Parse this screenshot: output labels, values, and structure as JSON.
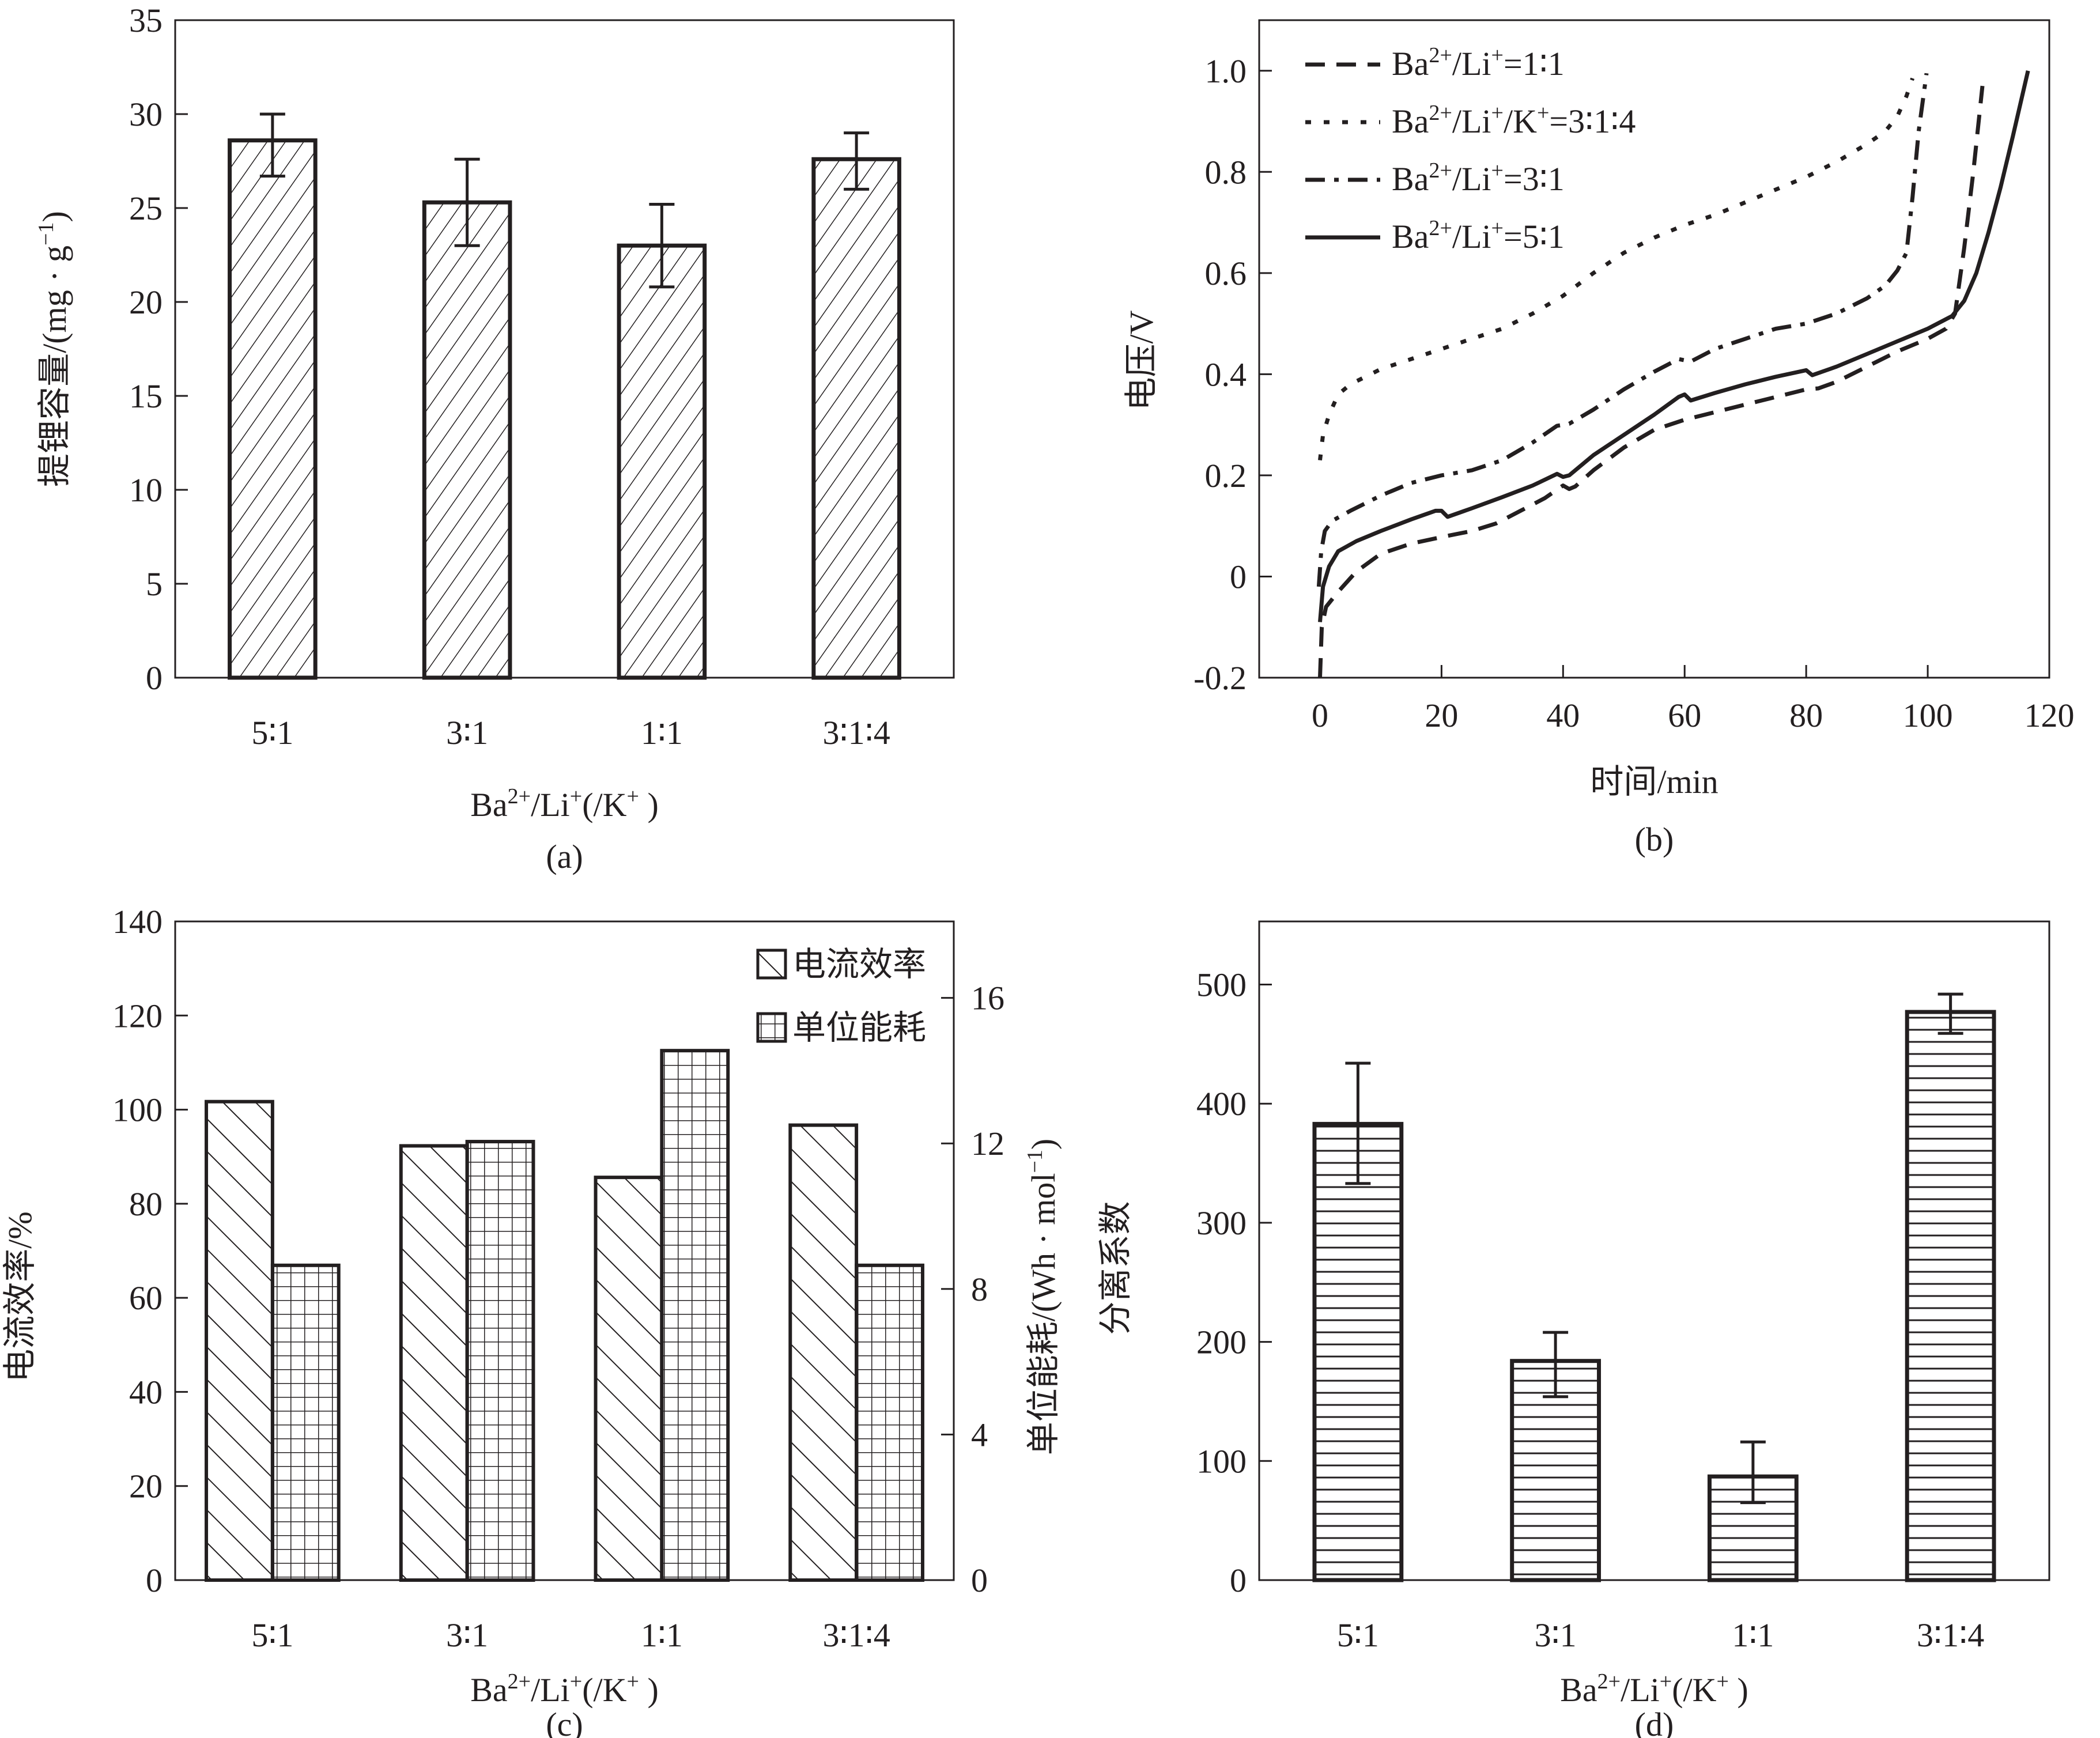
{
  "chart_data": [
    {
      "id": "a",
      "type": "bar",
      "panel_label": "(a)",
      "title": "",
      "xlabel": "Ba2+/Li+(/K+)",
      "ylabel": "提锂容量/(mg·g-1)",
      "categories": [
        "5∶1",
        "3∶1",
        "1∶1",
        "3∶1∶4"
      ],
      "values": [
        28.6,
        25.3,
        23.0,
        27.6
      ],
      "error_low": [
        26.7,
        23.0,
        20.8,
        26.0
      ],
      "error_high": [
        30.0,
        27.6,
        25.2,
        29.0
      ],
      "ylim": [
        0,
        35
      ],
      "yticks": [
        0,
        5,
        10,
        15,
        20,
        25,
        30,
        35
      ],
      "pattern": "diagonal-forward",
      "grid": false
    },
    {
      "id": "b",
      "type": "line",
      "panel_label": "(b)",
      "title": "",
      "xlabel": "时间/min",
      "ylabel": "电压/V",
      "xlim": [
        -10,
        120
      ],
      "ylim": [
        -0.2,
        1.1
      ],
      "xticks": [
        0,
        20,
        40,
        60,
        80,
        100,
        120
      ],
      "yticks": [
        -0.2,
        0,
        0.2,
        0.4,
        0.6,
        0.8,
        1.0
      ],
      "ytick_labels": [
        "-0.2",
        "0",
        "0.2",
        "0.4",
        "0.6",
        "0.8",
        "1.0"
      ],
      "legend_position": "top-left",
      "grid": false,
      "series": [
        {
          "name": "Ba2+/Li+=1∶1",
          "style": "dashed",
          "points": [
            [
              0,
              -0.2
            ],
            [
              0.3,
              -0.1
            ],
            [
              1,
              -0.06
            ],
            [
              3,
              -0.03
            ],
            [
              6,
              0.01
            ],
            [
              10,
              0.045
            ],
            [
              15,
              0.065
            ],
            [
              20,
              0.078
            ],
            [
              25,
              0.09
            ],
            [
              29,
              0.105
            ],
            [
              33,
              0.13
            ],
            [
              37,
              0.155
            ],
            [
              40,
              0.18
            ],
            [
              41,
              0.173
            ],
            [
              42,
              0.178
            ],
            [
              45,
              0.21
            ],
            [
              50,
              0.255
            ],
            [
              55,
              0.29
            ],
            [
              60,
              0.31
            ],
            [
              65,
              0.325
            ],
            [
              70,
              0.34
            ],
            [
              75,
              0.355
            ],
            [
              80,
              0.37
            ],
            [
              82,
              0.372
            ],
            [
              85,
              0.385
            ],
            [
              90,
              0.415
            ],
            [
              95,
              0.445
            ],
            [
              100,
              0.47
            ],
            [
              103,
              0.49
            ],
            [
              104.5,
              0.52
            ],
            [
              106,
              0.65
            ],
            [
              107.5,
              0.8
            ],
            [
              109,
              0.97
            ]
          ]
        },
        {
          "name": "Ba2+/Li+/K+=3∶1∶4",
          "style": "dotted",
          "points": [
            [
              0,
              0.23
            ],
            [
              0.5,
              0.28
            ],
            [
              1.5,
              0.32
            ],
            [
              3,
              0.36
            ],
            [
              5,
              0.38
            ],
            [
              10,
              0.41
            ],
            [
              15,
              0.43
            ],
            [
              20,
              0.45
            ],
            [
              25,
              0.47
            ],
            [
              30,
              0.49
            ],
            [
              35,
              0.52
            ],
            [
              40,
              0.555
            ],
            [
              45,
              0.6
            ],
            [
              50,
              0.64
            ],
            [
              55,
              0.67
            ],
            [
              60,
              0.695
            ],
            [
              65,
              0.715
            ],
            [
              70,
              0.74
            ],
            [
              75,
              0.765
            ],
            [
              80,
              0.79
            ],
            [
              85,
              0.82
            ],
            [
              90,
              0.855
            ],
            [
              93,
              0.88
            ],
            [
              95,
              0.91
            ],
            [
              96.5,
              0.95
            ],
            [
              97.5,
              0.985
            ]
          ]
        },
        {
          "name": "Ba2+/Li+=3∶1",
          "style": "dash-dot",
          "points": [
            [
              -0.2,
              -0.02
            ],
            [
              0.2,
              0.05
            ],
            [
              0.8,
              0.09
            ],
            [
              2,
              0.11
            ],
            [
              5,
              0.13
            ],
            [
              10,
              0.16
            ],
            [
              15,
              0.185
            ],
            [
              20,
              0.2
            ],
            [
              25,
              0.21
            ],
            [
              30,
              0.23
            ],
            [
              35,
              0.265
            ],
            [
              39,
              0.298
            ],
            [
              40,
              0.3
            ],
            [
              41,
              0.302
            ],
            [
              45,
              0.33
            ],
            [
              50,
              0.37
            ],
            [
              55,
              0.405
            ],
            [
              59,
              0.43
            ],
            [
              61,
              0.425
            ],
            [
              65,
              0.45
            ],
            [
              70,
              0.47
            ],
            [
              75,
              0.49
            ],
            [
              80,
              0.5
            ],
            [
              85,
              0.52
            ],
            [
              90,
              0.55
            ],
            [
              93,
              0.575
            ],
            [
              95,
              0.605
            ],
            [
              96.5,
              0.64
            ],
            [
              97.5,
              0.75
            ],
            [
              98.5,
              0.88
            ],
            [
              99.8,
              0.995
            ]
          ]
        },
        {
          "name": "Ba2+/Li+=5∶1",
          "style": "solid",
          "points": [
            [
              0,
              -0.09
            ],
            [
              0.5,
              -0.02
            ],
            [
              1.5,
              0.02
            ],
            [
              3,
              0.05
            ],
            [
              6,
              0.07
            ],
            [
              10,
              0.09
            ],
            [
              15,
              0.113
            ],
            [
              19,
              0.13
            ],
            [
              20,
              0.13
            ],
            [
              21,
              0.118
            ],
            [
              25,
              0.135
            ],
            [
              30,
              0.157
            ],
            [
              35,
              0.18
            ],
            [
              39,
              0.203
            ],
            [
              40,
              0.197
            ],
            [
              41,
              0.2
            ],
            [
              45,
              0.24
            ],
            [
              50,
              0.28
            ],
            [
              55,
              0.32
            ],
            [
              59,
              0.355
            ],
            [
              60,
              0.36
            ],
            [
              61,
              0.348
            ],
            [
              65,
              0.363
            ],
            [
              70,
              0.38
            ],
            [
              75,
              0.395
            ],
            [
              80,
              0.408
            ],
            [
              81,
              0.398
            ],
            [
              85,
              0.415
            ],
            [
              90,
              0.44
            ],
            [
              95,
              0.465
            ],
            [
              100,
              0.49
            ],
            [
              104,
              0.515
            ],
            [
              106,
              0.545
            ],
            [
              108,
              0.6
            ],
            [
              110,
              0.68
            ],
            [
              112,
              0.77
            ],
            [
              114,
              0.87
            ],
            [
              116.5,
              1.0
            ]
          ]
        }
      ]
    },
    {
      "id": "c",
      "type": "bar",
      "panel_label": "(c)",
      "title": "",
      "xlabel": "Ba2+/Li+(/K+)",
      "ylabel": "电流效率/%",
      "ylabel_right": "单位能耗/(Wh·mol-1)",
      "categories": [
        "5∶1",
        "3∶1",
        "1∶1",
        "3∶1∶4"
      ],
      "ylim": [
        0,
        140
      ],
      "yticks": [
        0,
        20,
        40,
        60,
        80,
        100,
        120,
        140
      ],
      "ylim_right": [
        0,
        18.1
      ],
      "yticks_right": [
        0,
        4,
        8,
        12,
        16
      ],
      "legend_position": "top-right",
      "grid": false,
      "series": [
        {
          "name": "电流效率",
          "axis": "left",
          "pattern": "diagonal-back",
          "values": [
            101.7,
            92.3,
            85.6,
            96.7
          ]
        },
        {
          "name": "单位能耗",
          "axis": "right",
          "pattern": "grid",
          "values": [
            8.65,
            12.05,
            14.55,
            8.65
          ]
        }
      ]
    },
    {
      "id": "d",
      "type": "bar",
      "panel_label": "(d)",
      "title": "",
      "xlabel": "Ba2+/Li+(/K+)",
      "ylabel": "分离系数",
      "categories": [
        "5∶1",
        "3∶1",
        "1∶1",
        "3∶1∶4"
      ],
      "values": [
        383,
        184,
        87,
        477
      ],
      "error_low": [
        333,
        154,
        65,
        459
      ],
      "error_high": [
        434,
        208,
        116,
        492
      ],
      "ylim": [
        0,
        553
      ],
      "yticks": [
        0,
        100,
        200,
        300,
        400,
        500
      ],
      "pattern": "horizontal",
      "grid": false
    }
  ],
  "labels": {
    "a_ylabel_main": "提锂容量/(mg · g",
    "a_ylabel_sup": "−1",
    "a_ylabel_end": ")",
    "x_base1": "Ba",
    "x_sup1": "2+",
    "x_base2": "/Li",
    "x_sup2": "+",
    "x_base3": "(/K",
    "x_sup3": "+",
    "x_base4": " )",
    "b_xlabel": "时间/min",
    "b_ylabel": "电压/V",
    "c_ylabel": "电流效率/%",
    "c_ylabel_right_main": "单位能耗/(Wh · mol",
    "c_ylabel_right_sup": "−1",
    "c_ylabel_right_end": ")",
    "d_ylabel": "分离系数",
    "legend_b": [
      {
        "pre": "Ba",
        "s1": "2+",
        "mid": "/Li",
        "s2": "+",
        "post": "=1∶1"
      },
      {
        "pre": "Ba",
        "s1": "2+",
        "mid": "/Li",
        "s2": "+",
        "mid2": "/K",
        "s3": "+",
        "post": "=3∶1∶4"
      },
      {
        "pre": "Ba",
        "s1": "2+",
        "mid": "/Li",
        "s2": "+",
        "post": "=3∶1"
      },
      {
        "pre": "Ba",
        "s1": "2+",
        "mid": "/Li",
        "s2": "+",
        "post": "=5∶1"
      }
    ],
    "legend_c": [
      "电流效率",
      "单位能耗"
    ]
  },
  "colors": {
    "ink": "#231f20",
    "background": "#ffffff"
  }
}
